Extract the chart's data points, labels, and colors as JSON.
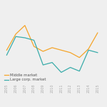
{
  "years": [
    2005,
    2006,
    2007,
    2008,
    2009,
    2010,
    2011,
    2012,
    2013,
    2014,
    2015
  ],
  "middle_market": [
    3.2,
    4.5,
    5.2,
    3.5,
    3.1,
    3.4,
    3.2,
    3.0,
    2.6,
    3.3,
    4.6
  ],
  "large_corp_market": [
    2.8,
    4.3,
    4.2,
    4.0,
    2.0,
    2.2,
    1.4,
    1.8,
    1.5,
    3.2,
    3.0
  ],
  "middle_market_color": "#f5a52a",
  "large_corp_color": "#3aacaa",
  "background_color": "#efefef",
  "grid_color": "#ffffff",
  "legend_labels": [
    "Middle market",
    "Large corp. market"
  ],
  "xlabel_years": [
    "2005",
    "2006",
    "2007",
    "2008",
    "2009",
    "2010",
    "2011",
    "2012",
    "2013",
    "2014",
    "2015"
  ],
  "ylim": [
    0.5,
    7.0
  ],
  "tick_fontsize": 3.5,
  "legend_fontsize": 3.8,
  "linewidth": 0.9
}
